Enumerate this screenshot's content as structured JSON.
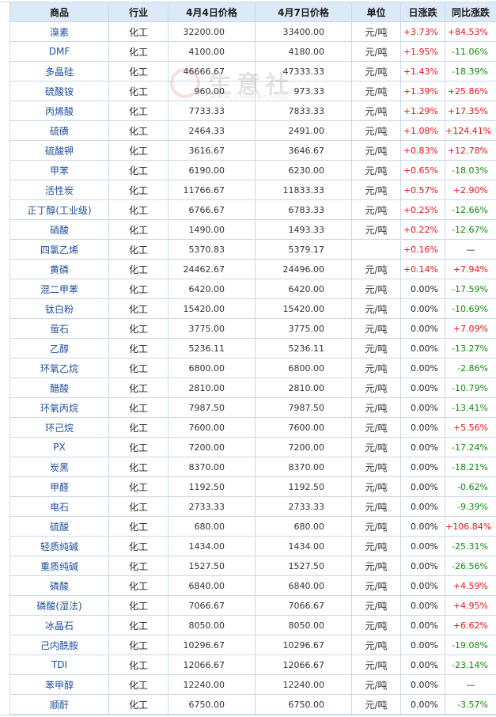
{
  "headers": [
    "商品",
    "行业",
    "4月4日价格",
    "4月7日价格",
    "单位",
    "日涨跌",
    "同比涨跌"
  ],
  "watermark": {
    "text": "生意社",
    "url": "www.100ppi.com"
  },
  "rows": [
    {
      "name": "溴素",
      "industry": "化工",
      "p1": "32200.00",
      "p2": "33400.00",
      "unit": "元/吨",
      "day": "+3.73%",
      "yoy": "+84.53%"
    },
    {
      "name": "DMF",
      "industry": "化工",
      "p1": "4100.00",
      "p2": "4180.00",
      "unit": "元/吨",
      "day": "+1.95%",
      "yoy": "-11.06%"
    },
    {
      "name": "多晶硅",
      "industry": "化工",
      "p1": "46666.67",
      "p2": "47333.33",
      "unit": "元/吨",
      "day": "+1.43%",
      "yoy": "-18.39%"
    },
    {
      "name": "硫酸铵",
      "industry": "化工",
      "p1": "960.00",
      "p2": "973.33",
      "unit": "元/吨",
      "day": "+1.39%",
      "yoy": "+25.86%"
    },
    {
      "name": "丙烯酸",
      "industry": "化工",
      "p1": "7733.33",
      "p2": "7833.33",
      "unit": "元/吨",
      "day": "+1.29%",
      "yoy": "+17.35%"
    },
    {
      "name": "硫磺",
      "industry": "化工",
      "p1": "2464.33",
      "p2": "2491.00",
      "unit": "元/吨",
      "day": "+1.08%",
      "yoy": "+124.41%"
    },
    {
      "name": "硫酸钾",
      "industry": "化工",
      "p1": "3616.67",
      "p2": "3646.67",
      "unit": "元/吨",
      "day": "+0.83%",
      "yoy": "+12.78%"
    },
    {
      "name": "甲苯",
      "industry": "化工",
      "p1": "6190.00",
      "p2": "6230.00",
      "unit": "元/吨",
      "day": "+0.65%",
      "yoy": "-18.03%"
    },
    {
      "name": "活性炭",
      "industry": "化工",
      "p1": "11766.67",
      "p2": "11833.33",
      "unit": "元/吨",
      "day": "+0.57%",
      "yoy": "+2.90%"
    },
    {
      "name": "正丁醇(工业级)",
      "industry": "化工",
      "p1": "6766.67",
      "p2": "6783.33",
      "unit": "元/吨",
      "day": "+0.25%",
      "yoy": "-12.66%"
    },
    {
      "name": "硝酸",
      "industry": "化工",
      "p1": "1490.00",
      "p2": "1493.33",
      "unit": "元/吨",
      "day": "+0.22%",
      "yoy": "-12.67%"
    },
    {
      "name": "四氯乙烯",
      "industry": "化工",
      "p1": "5370.83",
      "p2": "5379.17",
      "unit": "",
      "day": "+0.16%",
      "yoy": "—"
    },
    {
      "name": "黄磷",
      "industry": "化工",
      "p1": "24462.67",
      "p2": "24496.00",
      "unit": "元/吨",
      "day": "+0.14%",
      "yoy": "+7.94%"
    },
    {
      "name": "混二甲苯",
      "industry": "化工",
      "p1": "6420.00",
      "p2": "6420.00",
      "unit": "元/吨",
      "day": "0.00%",
      "yoy": "-17.59%"
    },
    {
      "name": "钛白粉",
      "industry": "化工",
      "p1": "15420.00",
      "p2": "15420.00",
      "unit": "元/吨",
      "day": "0.00%",
      "yoy": "-10.69%"
    },
    {
      "name": "萤石",
      "industry": "化工",
      "p1": "3775.00",
      "p2": "3775.00",
      "unit": "元/吨",
      "day": "0.00%",
      "yoy": "+7.09%"
    },
    {
      "name": "乙醇",
      "industry": "化工",
      "p1": "5236.11",
      "p2": "5236.11",
      "unit": "元/吨",
      "day": "0.00%",
      "yoy": "-13.27%"
    },
    {
      "name": "环氧乙烷",
      "industry": "化工",
      "p1": "6800.00",
      "p2": "6800.00",
      "unit": "元/吨",
      "day": "0.00%",
      "yoy": "-2.86%"
    },
    {
      "name": "醋酸",
      "industry": "化工",
      "p1": "2810.00",
      "p2": "2810.00",
      "unit": "元/吨",
      "day": "0.00%",
      "yoy": "-10.79%"
    },
    {
      "name": "环氧丙烷",
      "industry": "化工",
      "p1": "7987.50",
      "p2": "7987.50",
      "unit": "元/吨",
      "day": "0.00%",
      "yoy": "-13.41%"
    },
    {
      "name": "环己烷",
      "industry": "化工",
      "p1": "7600.00",
      "p2": "7600.00",
      "unit": "元/吨",
      "day": "0.00%",
      "yoy": "+5.56%"
    },
    {
      "name": "PX",
      "industry": "化工",
      "p1": "7200.00",
      "p2": "7200.00",
      "unit": "元/吨",
      "day": "0.00%",
      "yoy": "-17.24%"
    },
    {
      "name": "炭黑",
      "industry": "化工",
      "p1": "8370.00",
      "p2": "8370.00",
      "unit": "元/吨",
      "day": "0.00%",
      "yoy": "-18.21%"
    },
    {
      "name": "甲醛",
      "industry": "化工",
      "p1": "1192.50",
      "p2": "1192.50",
      "unit": "元/吨",
      "day": "0.00%",
      "yoy": "-0.62%"
    },
    {
      "name": "电石",
      "industry": "化工",
      "p1": "2733.33",
      "p2": "2733.33",
      "unit": "元/吨",
      "day": "0.00%",
      "yoy": "-9.39%"
    },
    {
      "name": "硫酸",
      "industry": "化工",
      "p1": "680.00",
      "p2": "680.00",
      "unit": "元/吨",
      "day": "0.00%",
      "yoy": "+106.84%"
    },
    {
      "name": "轻质纯碱",
      "industry": "化工",
      "p1": "1434.00",
      "p2": "1434.00",
      "unit": "元/吨",
      "day": "0.00%",
      "yoy": "-25.31%"
    },
    {
      "name": "重质纯碱",
      "industry": "化工",
      "p1": "1527.50",
      "p2": "1527.50",
      "unit": "元/吨",
      "day": "0.00%",
      "yoy": "-26.56%"
    },
    {
      "name": "磷酸",
      "industry": "化工",
      "p1": "6840.00",
      "p2": "6840.00",
      "unit": "元/吨",
      "day": "0.00%",
      "yoy": "+4.59%"
    },
    {
      "name": "磷酸(湿法)",
      "industry": "化工",
      "p1": "7066.67",
      "p2": "7066.67",
      "unit": "元/吨",
      "day": "0.00%",
      "yoy": "+4.95%"
    },
    {
      "name": "冰晶石",
      "industry": "化工",
      "p1": "8050.00",
      "p2": "8050.00",
      "unit": "元/吨",
      "day": "0.00%",
      "yoy": "+6.62%"
    },
    {
      "name": "己内酰胺",
      "industry": "化工",
      "p1": "10296.67",
      "p2": "10296.67",
      "unit": "元/吨",
      "day": "0.00%",
      "yoy": "-19.08%"
    },
    {
      "name": "TDI",
      "industry": "化工",
      "p1": "12066.67",
      "p2": "12066.67",
      "unit": "元/吨",
      "day": "0.00%",
      "yoy": "-23.14%"
    },
    {
      "name": "苯甲醇",
      "industry": "化工",
      "p1": "12240.00",
      "p2": "12240.00",
      "unit": "元/吨",
      "day": "0.00%",
      "yoy": "—"
    },
    {
      "name": "顺酐",
      "industry": "化工",
      "p1": "6750.00",
      "p2": "6750.00",
      "unit": "元/吨",
      "day": "0.00%",
      "yoy": "-3.57%"
    }
  ]
}
